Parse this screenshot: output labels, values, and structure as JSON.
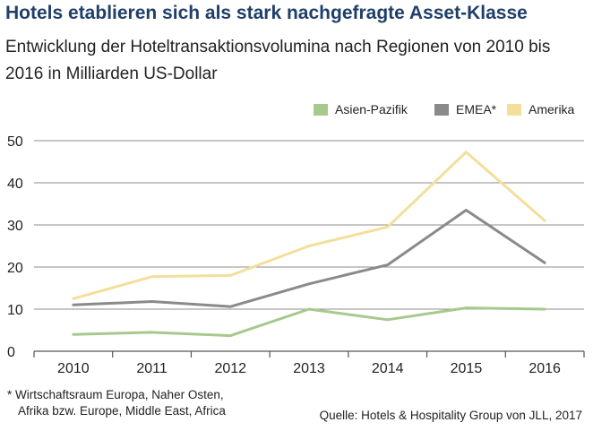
{
  "title": "Hotels etablieren sich als stark nachgefragte Asset-Klasse",
  "subtitle": "Entwicklung der Hoteltransaktionsvolumina nach Regionen von 2010 bis 2016 in Milliarden US-Dollar",
  "footnote": {
    "line1": "* Wirtschaftsraum Europa, Naher Osten,",
    "line2": "Afrika bzw. Europe, Middle East, Africa"
  },
  "source": "Quelle: Hotels & Hospitality Group von JLL, 2017",
  "chart_data": {
    "type": "line",
    "categories": [
      "2010",
      "2011",
      "2012",
      "2013",
      "2014",
      "2015",
      "2016"
    ],
    "ylim": [
      0,
      50
    ],
    "yticks": [
      0,
      10,
      20,
      30,
      40,
      50
    ],
    "grid": true,
    "legend_position": "top-right",
    "series": [
      {
        "name": "Asien-Pazifik",
        "color": "#a6c98c",
        "values": [
          4,
          4.5,
          3.7,
          10,
          7.5,
          10.3,
          10
        ]
      },
      {
        "name": "EMEA*",
        "color": "#8a8a8a",
        "values": [
          11,
          11.8,
          10.6,
          16,
          20.5,
          33.5,
          21
        ]
      },
      {
        "name": "Amerika",
        "color": "#f3df9a",
        "values": [
          12.5,
          17.7,
          18,
          25,
          29.5,
          47.3,
          31
        ]
      }
    ]
  }
}
